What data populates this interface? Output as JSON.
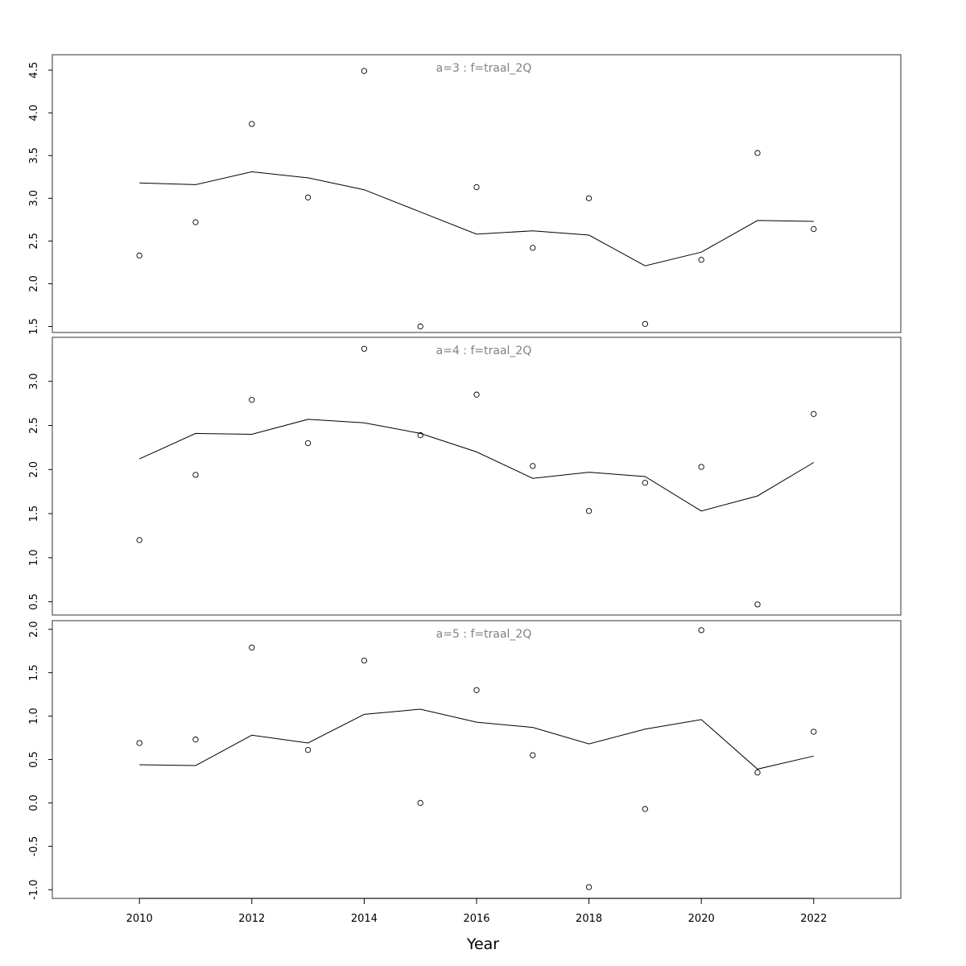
{
  "chart_data": {
    "type": "line",
    "xlabel": "Year",
    "x_ticks": [
      2010,
      2012,
      2014,
      2016,
      2018,
      2020,
      2022
    ],
    "xlim": [
      2008.45,
      2023.55
    ],
    "panels": [
      {
        "label": "a=3  :  f=traal_2Q",
        "ylim": [
          1.43,
          4.68
        ],
        "y_ticks": [
          1.5,
          2.0,
          2.5,
          3.0,
          3.5,
          4.0,
          4.5
        ],
        "y_tick_labels": [
          "1.5",
          "2.0",
          "2.5",
          "3.0",
          "3.5",
          "4.0",
          "4.5"
        ],
        "x": [
          2010,
          2011,
          2012,
          2013,
          2014,
          2015,
          2016,
          2017,
          2018,
          2019,
          2020,
          2021,
          2022
        ],
        "observed": [
          2.33,
          2.72,
          3.87,
          3.01,
          4.49,
          1.5,
          3.13,
          2.42,
          3.0,
          1.53,
          2.28,
          3.53,
          2.64
        ],
        "fitted": [
          3.18,
          3.16,
          3.31,
          3.24,
          3.1,
          2.84,
          2.58,
          2.62,
          2.57,
          2.21,
          2.37,
          2.74,
          2.73
        ]
      },
      {
        "label": "a=4  :  f=traal_2Q",
        "ylim": [
          0.35,
          3.5
        ],
        "y_ticks": [
          0.5,
          1.0,
          1.5,
          2.0,
          2.5,
          3.0
        ],
        "y_tick_labels": [
          "0.5",
          "1.0",
          "1.5",
          "2.0",
          "2.5",
          "3.0"
        ],
        "x": [
          2010,
          2011,
          2012,
          2013,
          2014,
          2015,
          2016,
          2017,
          2018,
          2019,
          2020,
          2021,
          2022
        ],
        "observed": [
          1.2,
          1.94,
          2.79,
          2.3,
          3.37,
          2.39,
          2.85,
          2.04,
          1.53,
          1.85,
          2.03,
          0.47,
          2.63
        ],
        "fitted": [
          2.12,
          2.41,
          2.4,
          2.57,
          2.53,
          2.41,
          2.2,
          1.9,
          1.97,
          1.92,
          1.53,
          1.7,
          2.08
        ]
      },
      {
        "label": "a=5  :  f=traal_2Q",
        "ylim": [
          -1.1,
          2.1
        ],
        "y_ticks": [
          -1.0,
          -0.5,
          0.0,
          0.5,
          1.0,
          1.5,
          2.0
        ],
        "y_tick_labels": [
          "-1.0",
          "-0.5",
          "0.0",
          "0.5",
          "1.0",
          "1.5",
          "2.0"
        ],
        "x": [
          2010,
          2011,
          2012,
          2013,
          2014,
          2015,
          2016,
          2017,
          2018,
          2019,
          2020,
          2021,
          2022
        ],
        "observed": [
          0.69,
          0.73,
          1.79,
          0.61,
          1.64,
          0.0,
          1.3,
          0.55,
          -0.97,
          -0.07,
          1.99,
          0.35,
          0.82
        ],
        "fitted": [
          0.44,
          0.43,
          0.78,
          0.69,
          1.02,
          1.08,
          0.93,
          0.87,
          0.68,
          0.85,
          0.96,
          0.39,
          0.54
        ]
      }
    ]
  }
}
